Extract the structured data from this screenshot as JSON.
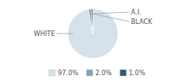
{
  "chart_data": {
    "type": "pie",
    "categories": [
      "WHITE",
      "A.I.",
      "BLACK"
    ],
    "values": [
      97.0,
      2.0,
      1.0
    ],
    "value_labels": [
      "97.0%",
      "2.0%",
      "1.0%"
    ],
    "colors": [
      "#d6e1ea",
      "#7ba7be",
      "#2e5d78"
    ],
    "legend": "bottom"
  }
}
